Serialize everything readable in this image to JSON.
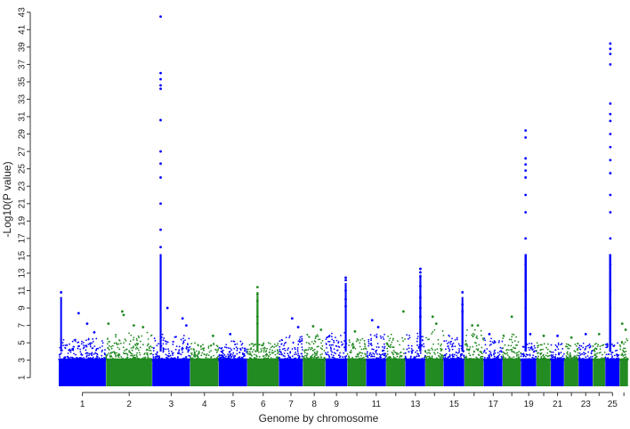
{
  "chart_data": {
    "type": "scatter",
    "subtype": "manhattan",
    "title": "",
    "xlabel": "Genome by chromosome",
    "ylabel": "-Log10(P value)",
    "ylim": [
      0,
      44
    ],
    "yticks": [
      1,
      3,
      5,
      7,
      9,
      11,
      13,
      15,
      17,
      19,
      21,
      23,
      25,
      27,
      29,
      31,
      33,
      35,
      37,
      39,
      41,
      43
    ],
    "grid": false,
    "legend": "none",
    "colors": {
      "odd": "#0000ff",
      "even": "#228b22"
    },
    "x_tick_labels": [
      "1",
      "2",
      "3",
      "4",
      "5",
      "6",
      "7",
      "8",
      "9",
      "11",
      "13",
      "15",
      "17",
      "19",
      "21",
      "23",
      "25"
    ],
    "chromosomes": [
      {
        "chr": "1",
        "width": 248,
        "base_max": 5.5,
        "peaks": [
          [
            0.05,
            10.8
          ],
          [
            0.42,
            8.4
          ],
          [
            0.6,
            7.2
          ],
          [
            0.75,
            6.2
          ]
        ]
      },
      {
        "chr": "2",
        "width": 242,
        "base_max": 6.2,
        "peaks": [
          [
            0.05,
            7.2
          ],
          [
            0.35,
            8.6
          ],
          [
            0.38,
            8.2
          ],
          [
            0.6,
            7.0
          ],
          [
            0.8,
            6.8
          ]
        ]
      },
      {
        "chr": "3",
        "width": 198,
        "base_max": 6.0,
        "peaks": [
          [
            0.22,
            42.5
          ],
          [
            0.22,
            36.0
          ],
          [
            0.22,
            35.3
          ],
          [
            0.22,
            34.6
          ],
          [
            0.22,
            34.2
          ],
          [
            0.22,
            30.6
          ],
          [
            0.22,
            27.0
          ],
          [
            0.22,
            25.6
          ],
          [
            0.22,
            24.0
          ],
          [
            0.22,
            21.0
          ],
          [
            0.22,
            18.0
          ],
          [
            0.22,
            16.0
          ],
          [
            0.4,
            9.0
          ],
          [
            0.8,
            7.8
          ],
          [
            0.9,
            7.0
          ]
        ]
      },
      {
        "chr": "4",
        "width": 150,
        "base_max": 5.0,
        "peaks": [
          [
            0.8,
            5.8
          ]
        ]
      },
      {
        "chr": "5",
        "width": 150,
        "base_max": 5.2,
        "peaks": [
          [
            0.4,
            6.0
          ]
        ]
      },
      {
        "chr": "6",
        "width": 165,
        "base_max": 5.0,
        "peaks": [
          [
            0.32,
            11.4
          ],
          [
            0.32,
            10.6
          ],
          [
            0.32,
            9.8
          ],
          [
            0.32,
            8.0
          ],
          [
            0.32,
            7.2
          ]
        ]
      },
      {
        "chr": "7",
        "width": 126,
        "base_max": 6.0,
        "peaks": [
          [
            0.55,
            7.8
          ],
          [
            0.8,
            6.8
          ]
        ]
      },
      {
        "chr": "8",
        "width": 118,
        "base_max": 6.0,
        "peaks": [
          [
            0.45,
            6.9
          ],
          [
            0.8,
            6.5
          ]
        ]
      },
      {
        "chr": "9",
        "width": 115,
        "base_max": 6.2,
        "peaks": [
          [
            0.92,
            12.5
          ],
          [
            0.92,
            12.2
          ],
          [
            0.92,
            11.0
          ],
          [
            0.92,
            10.0
          ],
          [
            0.92,
            9.2
          ]
        ]
      },
      {
        "chr": "10",
        "width": 98,
        "base_max": 5.5,
        "peaks": [
          [
            0.4,
            6.3
          ]
        ]
      },
      {
        "chr": "11",
        "width": 105,
        "base_max": 6.0,
        "peaks": [
          [
            0.3,
            7.6
          ],
          [
            0.6,
            6.8
          ]
        ]
      },
      {
        "chr": "12",
        "width": 100,
        "base_max": 6.0,
        "peaks": [
          [
            0.9,
            8.6
          ]
        ]
      },
      {
        "chr": "13",
        "width": 105,
        "base_max": 6.2,
        "peaks": [
          [
            0.75,
            13.5
          ],
          [
            0.75,
            13.1
          ],
          [
            0.75,
            12.6
          ],
          [
            0.75,
            11.5
          ],
          [
            0.75,
            10.2
          ],
          [
            0.75,
            9.0
          ],
          [
            0.75,
            8.0
          ]
        ]
      },
      {
        "chr": "14",
        "width": 95,
        "base_max": 6.5,
        "peaks": [
          [
            0.4,
            8.0
          ],
          [
            0.6,
            7.2
          ]
        ]
      },
      {
        "chr": "15",
        "width": 110,
        "base_max": 6.0,
        "peaks": [
          [
            0.9,
            10.8
          ],
          [
            0.9,
            9.4
          ],
          [
            0.9,
            8.6
          ]
        ]
      },
      {
        "chr": "16",
        "width": 100,
        "base_max": 6.5,
        "peaks": [
          [
            0.4,
            7.0
          ],
          [
            0.7,
            7.0
          ]
        ]
      },
      {
        "chr": "17",
        "width": 100,
        "base_max": 5.5,
        "peaks": [
          [
            0.3,
            6.0
          ]
        ]
      },
      {
        "chr": "18",
        "width": 95,
        "base_max": 6.0,
        "peaks": [
          [
            0.5,
            8.0
          ]
        ]
      },
      {
        "chr": "19",
        "width": 82,
        "base_max": 5.0,
        "peaks": [
          [
            0.3,
            29.4
          ],
          [
            0.3,
            28.6
          ],
          [
            0.3,
            26.2
          ],
          [
            0.3,
            25.5
          ],
          [
            0.3,
            24.8
          ],
          [
            0.3,
            24.0
          ],
          [
            0.3,
            22.0
          ],
          [
            0.3,
            20.0
          ],
          [
            0.3,
            17.0
          ],
          [
            0.3,
            14.0
          ],
          [
            0.3,
            11.0
          ],
          [
            0.3,
            9.0
          ],
          [
            0.6,
            6.0
          ]
        ]
      },
      {
        "chr": "20",
        "width": 75,
        "base_max": 5.0,
        "peaks": [
          [
            0.5,
            5.8
          ]
        ]
      },
      {
        "chr": "21",
        "width": 70,
        "base_max": 5.0,
        "peaks": [
          [
            0.5,
            5.8
          ]
        ]
      },
      {
        "chr": "22",
        "width": 75,
        "base_max": 5.0,
        "peaks": [
          [
            0.5,
            5.6
          ]
        ]
      },
      {
        "chr": "23",
        "width": 75,
        "base_max": 5.0,
        "peaks": [
          [
            0.5,
            6.0
          ]
        ]
      },
      {
        "chr": "24",
        "width": 65,
        "base_max": 5.0,
        "peaks": [
          [
            0.5,
            6.0
          ]
        ]
      },
      {
        "chr": "25",
        "width": 75,
        "base_max": 5.0,
        "peaks": [
          [
            0.35,
            39.4
          ],
          [
            0.35,
            38.8
          ],
          [
            0.35,
            38.2
          ],
          [
            0.35,
            37.0
          ],
          [
            0.35,
            32.5
          ],
          [
            0.35,
            31.3
          ],
          [
            0.35,
            30.5
          ],
          [
            0.35,
            29.0
          ],
          [
            0.35,
            27.5
          ],
          [
            0.35,
            26.0
          ],
          [
            0.35,
            24.5
          ],
          [
            0.35,
            22.0
          ],
          [
            0.35,
            20.0
          ],
          [
            0.35,
            17.0
          ],
          [
            0.35,
            14.0
          ],
          [
            0.35,
            11.0
          ],
          [
            0.35,
            9.0
          ]
        ]
      },
      {
        "chr": "26",
        "width": 45,
        "base_max": 5.5,
        "peaks": [
          [
            0.3,
            7.2
          ],
          [
            0.7,
            6.5
          ]
        ]
      }
    ]
  }
}
